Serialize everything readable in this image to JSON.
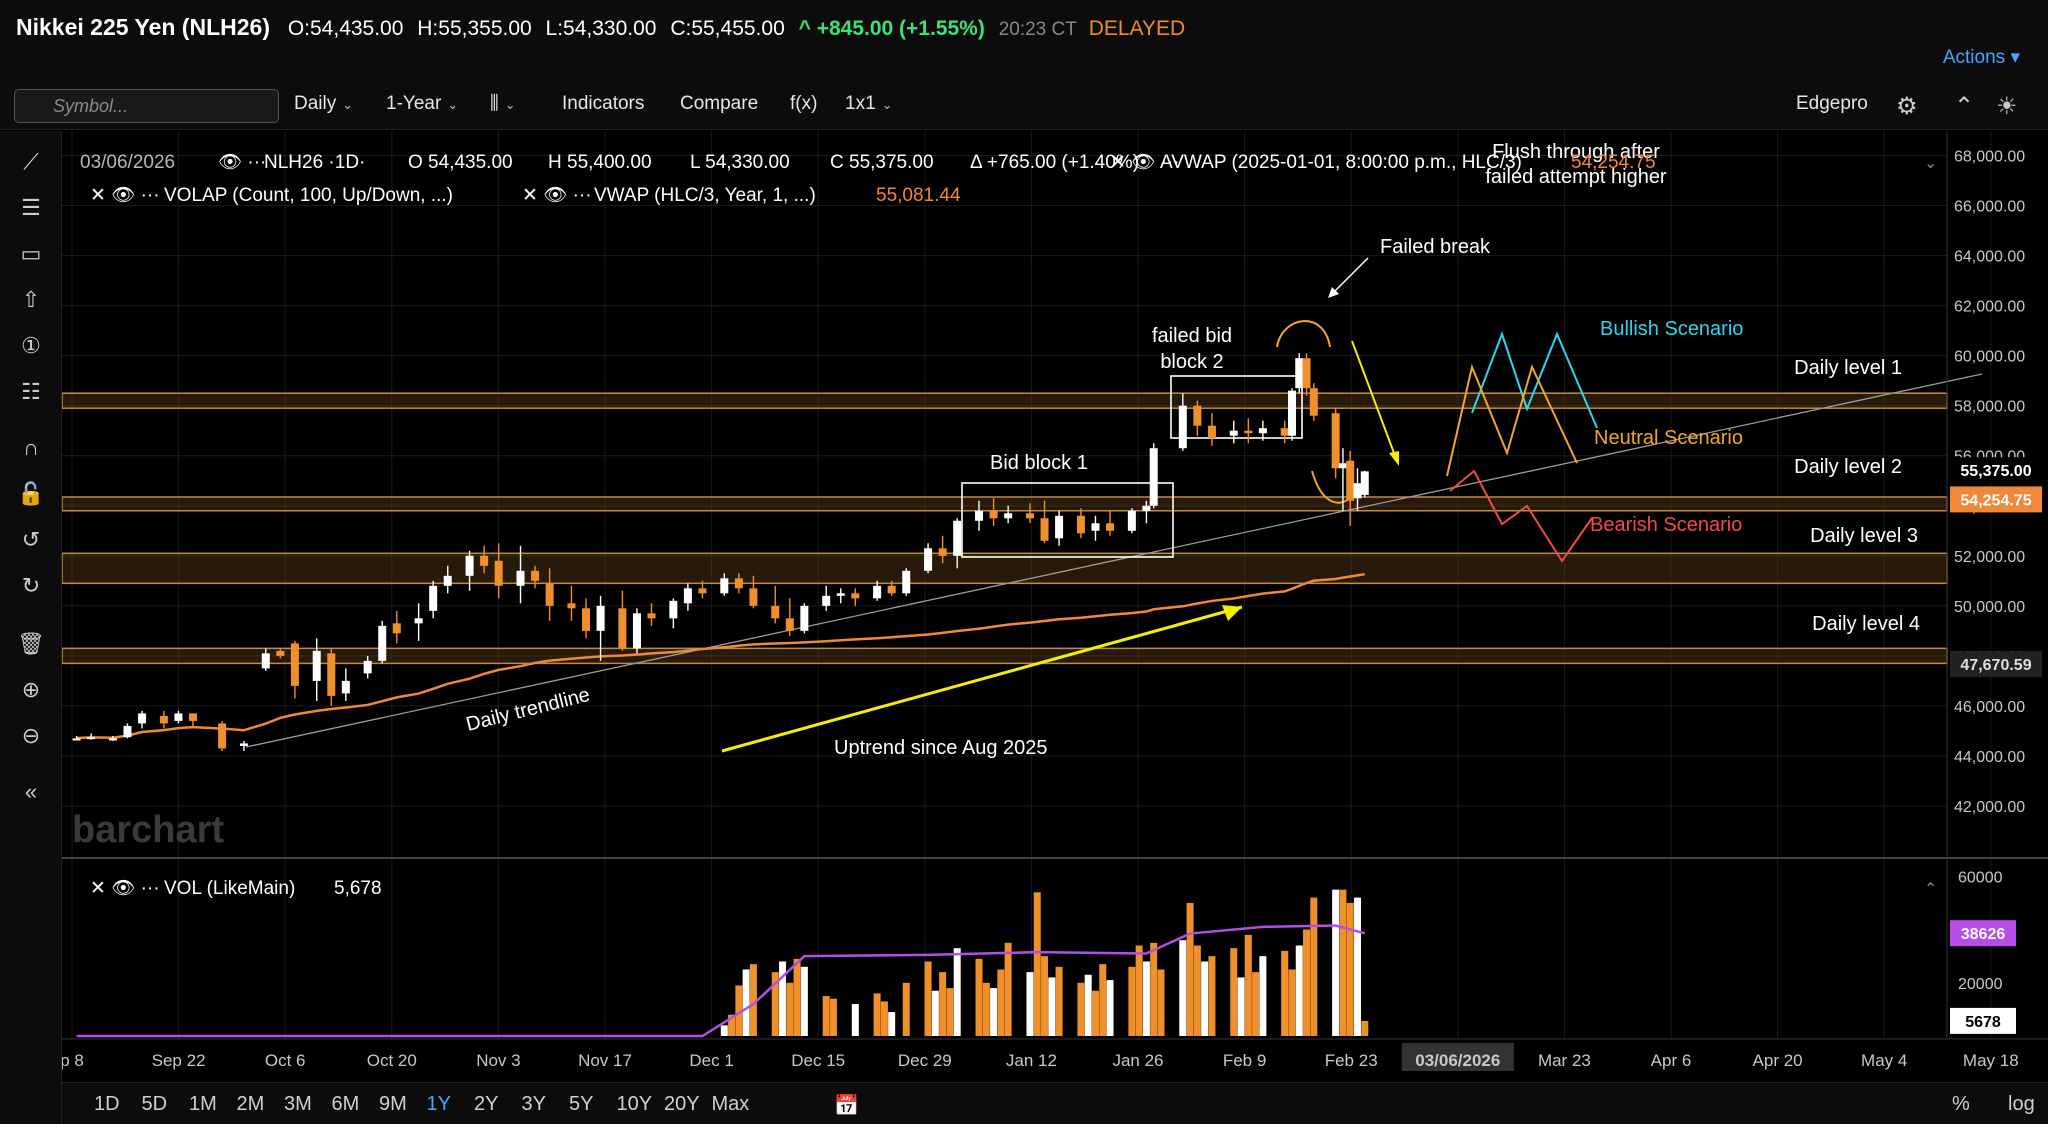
{
  "header": {
    "instrument": "Nikkei 225 Yen (NLH26)",
    "open": "O:54,435.00",
    "high": "H:55,355.00",
    "low": "L:54,330.00",
    "close": "C:55,455.00",
    "change": "^ +845.00 (+1.55%)",
    "time": "20:23 CT",
    "delayed": "DELAYED",
    "actions": "Actions"
  },
  "toolbar": {
    "symbol_placeholder": "Symbol...",
    "interval": "Daily",
    "range": "1-Year",
    "indicators": "Indicators",
    "compare": "Compare",
    "fx": "f(x)",
    "layout": "1x1",
    "account": "Edgepro"
  },
  "legend": {
    "date": "03/06/2026",
    "symbol": "NLH26 ·1D·",
    "o": "O 54,435.00",
    "h": "H 55,400.00",
    "l": "L 54,330.00",
    "c": "C 55,375.00",
    "d": "Δ +765.00 (+1.40%)",
    "avwap_label": "AVWAP (2025-01-01, 8:00:00 p.m., HLC/3)",
    "avwap_value": "54,254.75",
    "volap_label": "VOLAP (Count, 100, Up/Down, ...)",
    "vwap_label": "VWAP (HLC/3, Year, 1, ...)",
    "vwap_value": "55,081.44",
    "vol_label": "VOL (LikeMain)",
    "vol_value": "5,678"
  },
  "annotations": {
    "flush": [
      "Flush through after",
      "failed attempt higher"
    ],
    "failed_break": "Failed break",
    "failed_bid": [
      "failed bid",
      "block 2"
    ],
    "bid_block_1": "Bid block 1",
    "bullish": "Bullish Scenario",
    "neutral": "Neutral Scenario",
    "bearish": "Bearish Scenario",
    "level1": "Daily level 1",
    "level2": "Daily level 2",
    "level3": "Daily level 3",
    "level4": "Daily level 4",
    "trendline": "Daily trendline",
    "uptrend": "Uptrend since Aug 2025",
    "watermark": "barchart"
  },
  "price_axis": {
    "ticks": [
      "68,000.00",
      "66,000.00",
      "64,000.00",
      "62,000.00",
      "60,000.00",
      "58,000.00",
      "56,000.00",
      "54,000.00",
      "52,000.00",
      "50,000.00",
      "48,000.00",
      "46,000.00",
      "44,000.00",
      "42,000.00"
    ],
    "last_price": "55,375.00",
    "avwap_tag": "54,254.75",
    "level_tag": "47,670.59"
  },
  "volume_axis": {
    "ticks": [
      "60000",
      "20000"
    ],
    "avg_tag": "38626",
    "last_tag": "5678"
  },
  "time_axis": {
    "labels": [
      "p 8",
      "Sep 22",
      "Oct 6",
      "Oct 20",
      "Nov 3",
      "Nov 17",
      "Dec 1",
      "Dec 15",
      "Dec 29",
      "Jan 12",
      "Jan 26",
      "Feb 9",
      "Feb 23",
      "03/06/2026",
      "Mar 23",
      "Apr 6",
      "Apr 20",
      "May 4",
      "May 18"
    ]
  },
  "timeframes": [
    "1D",
    "5D",
    "1M",
    "2M",
    "3M",
    "6M",
    "9M",
    "1Y",
    "2Y",
    "3Y",
    "5Y",
    "10Y",
    "20Y",
    "Max"
  ],
  "active_timeframe": "1Y",
  "bottom_right": {
    "percent": "%",
    "log": "log"
  },
  "colors": {
    "up": "#ffffff",
    "down": "#f0902a",
    "vwap": "#f0883a",
    "volume_avg": "#b44ee6",
    "bullish": "#2ad7f0",
    "neutral": "#f2a62a",
    "bearish": "#f24a4a",
    "arrow": "#f4f000"
  },
  "chart_data": {
    "type": "candlestick",
    "ylim": [
      41000,
      68500
    ],
    "x_range": [
      "2025-09-08",
      "2026-05-25"
    ],
    "zones": [
      {
        "label": "Daily level 1",
        "low": 57900,
        "high": 58500
      },
      {
        "label": "Daily level 2",
        "low": 53800,
        "high": 54350
      },
      {
        "label": "Daily level 3",
        "low": 50900,
        "high": 52100
      },
      {
        "label": "Daily level 4",
        "low": 47700,
        "high": 48300
      }
    ],
    "candles": [
      [
        "2025-09-10",
        44700,
        44800,
        44650,
        44700
      ],
      [
        "2025-09-12",
        44700,
        44900,
        44650,
        44750
      ],
      [
        "2025-09-15",
        44700,
        44800,
        44600,
        44700
      ],
      [
        "2025-09-17",
        44750,
        45300,
        44700,
        45200
      ],
      [
        "2025-09-19",
        45300,
        45800,
        45100,
        45700
      ],
      [
        "2025-09-22",
        45600,
        45800,
        45100,
        45300
      ],
      [
        "2025-09-24",
        45400,
        45800,
        45300,
        45700
      ],
      [
        "2025-09-26",
        45700,
        45700,
        45200,
        45400
      ],
      [
        "2025-09-30",
        45300,
        45400,
        44200,
        44300
      ],
      [
        "2025-10-03",
        44400,
        44600,
        44200,
        44500
      ],
      [
        "2025-10-06",
        47500,
        48300,
        47400,
        48100
      ],
      [
        "2025-10-08",
        48200,
        48300,
        47900,
        48000
      ],
      [
        "2025-10-10",
        48500,
        48600,
        46300,
        46800
      ],
      [
        "2025-10-13",
        47000,
        48700,
        46200,
        48200
      ],
      [
        "2025-10-15",
        48100,
        48300,
        46000,
        46400
      ],
      [
        "2025-10-17",
        46500,
        47500,
        46200,
        47000
      ],
      [
        "2025-10-20",
        47300,
        48000,
        47100,
        47800
      ],
      [
        "2025-10-22",
        47800,
        49400,
        47700,
        49200
      ],
      [
        "2025-10-24",
        49300,
        49800,
        48500,
        48900
      ],
      [
        "2025-10-27",
        49300,
        50100,
        48600,
        49500
      ],
      [
        "2025-10-29",
        49800,
        51000,
        49500,
        50800
      ],
      [
        "2025-10-31",
        50800,
        51600,
        50500,
        51200
      ],
      [
        "2025-11-03",
        51200,
        52200,
        50600,
        52000
      ],
      [
        "2025-11-05",
        52000,
        52400,
        51300,
        51600
      ],
      [
        "2025-11-07",
        51800,
        52500,
        50300,
        50800
      ],
      [
        "2025-11-10",
        50800,
        52400,
        50100,
        51400
      ],
      [
        "2025-11-12",
        51400,
        51600,
        50700,
        51000
      ],
      [
        "2025-11-14",
        50900,
        51500,
        49400,
        50000
      ],
      [
        "2025-11-17",
        50100,
        50800,
        49400,
        49900
      ],
      [
        "2025-11-19",
        49900,
        50300,
        48700,
        49000
      ],
      [
        "2025-11-21",
        49000,
        50400,
        47800,
        50000
      ],
      [
        "2025-11-24",
        49900,
        50600,
        48200,
        48300
      ],
      [
        "2025-11-26",
        48300,
        49900,
        48100,
        49700
      ],
      [
        "2025-11-28",
        49700,
        50100,
        49200,
        49500
      ],
      [
        "2025-12-01",
        49500,
        50300,
        49100,
        50200
      ],
      [
        "2025-12-03",
        50100,
        50900,
        49800,
        50700
      ],
      [
        "2025-12-05",
        50700,
        51000,
        50300,
        50500
      ],
      [
        "2025-12-08",
        50500,
        51300,
        50400,
        51100
      ],
      [
        "2025-12-10",
        51100,
        51300,
        50500,
        50700
      ],
      [
        "2025-12-12",
        50700,
        51200,
        49900,
        50000
      ],
      [
        "2025-12-15",
        50000,
        50800,
        49300,
        49500
      ],
      [
        "2025-12-17",
        49500,
        50300,
        48800,
        49000
      ],
      [
        "2025-12-19",
        49000,
        50100,
        48900,
        50000
      ],
      [
        "2025-12-22",
        50000,
        50800,
        49800,
        50400
      ],
      [
        "2025-12-24",
        50400,
        50700,
        50100,
        50500
      ],
      [
        "2025-12-26",
        50500,
        50700,
        50000,
        50300
      ],
      [
        "2025-12-29",
        50300,
        51000,
        50200,
        50800
      ],
      [
        "2025-12-31",
        50800,
        51000,
        50400,
        50500
      ],
      [
        "2026-01-02",
        50500,
        51500,
        50400,
        51400
      ],
      [
        "2026-01-05",
        51400,
        52500,
        51300,
        52300
      ],
      [
        "2026-01-07",
        52300,
        52800,
        51700,
        52000
      ],
      [
        "2026-01-09",
        52000,
        53500,
        51500,
        53400
      ],
      [
        "2026-01-12",
        53400,
        54200,
        53000,
        53800
      ],
      [
        "2026-01-14",
        53800,
        54300,
        53200,
        53500
      ],
      [
        "2026-01-16",
        53500,
        54000,
        53300,
        53700
      ],
      [
        "2026-01-19",
        53700,
        54100,
        53300,
        53500
      ],
      [
        "2026-01-21",
        53500,
        54200,
        52500,
        52600
      ],
      [
        "2026-01-23",
        52700,
        53800,
        52400,
        53600
      ],
      [
        "2026-01-26",
        53600,
        53900,
        52700,
        52900
      ],
      [
        "2026-01-28",
        53000,
        53600,
        52600,
        53300
      ],
      [
        "2026-01-30",
        53300,
        53800,
        52800,
        53000
      ],
      [
        "2026-02-02",
        53000,
        53900,
        52900,
        53800
      ],
      [
        "2026-02-04",
        53800,
        54200,
        53300,
        54000
      ],
      [
        "2026-02-05",
        54000,
        56500,
        53900,
        56300
      ],
      [
        "2026-02-09",
        56300,
        58500,
        56200,
        58000
      ],
      [
        "2026-02-11",
        58000,
        58200,
        56800,
        57200
      ],
      [
        "2026-02-13",
        57200,
        57700,
        56400,
        56700
      ],
      [
        "2026-02-16",
        56800,
        57400,
        56500,
        57000
      ],
      [
        "2026-02-18",
        57000,
        57500,
        56500,
        56900
      ],
      [
        "2026-02-20",
        56900,
        57400,
        56600,
        57100
      ],
      [
        "2026-02-23",
        57100,
        57400,
        56500,
        56800
      ],
      [
        "2026-02-24",
        56800,
        58700,
        56600,
        58600
      ],
      [
        "2026-02-25",
        58700,
        60100,
        58500,
        59900
      ],
      [
        "2026-02-26",
        59900,
        60100,
        58400,
        58700
      ],
      [
        "2026-02-27",
        58700,
        58900,
        57400,
        57600
      ],
      [
        "2026-03-02",
        57700,
        57900,
        55100,
        55500
      ],
      [
        "2026-03-03",
        55500,
        56300,
        53800,
        55700
      ],
      [
        "2026-03-04",
        55800,
        56200,
        53200,
        54200
      ],
      [
        "2026-03-05",
        54300,
        55500,
        53800,
        54900
      ],
      [
        "2026-03-06",
        54435,
        55400,
        54330,
        55375
      ]
    ],
    "volume": [
      [
        "2025-12-08",
        4000
      ],
      [
        "2025-12-09",
        8000
      ],
      [
        "2025-12-10",
        19000
      ],
      [
        "2025-12-11",
        25000
      ],
      [
        "2025-12-12",
        27000
      ],
      [
        "2025-12-15",
        24000
      ],
      [
        "2025-12-16",
        28000
      ],
      [
        "2025-12-17",
        20000
      ],
      [
        "2025-12-18",
        29000
      ],
      [
        "2025-12-19",
        26000
      ],
      [
        "2025-12-22",
        15000
      ],
      [
        "2025-12-23",
        14000
      ],
      [
        "2025-12-26",
        12000
      ],
      [
        "2025-12-29",
        16000
      ],
      [
        "2025-12-30",
        13000
      ],
      [
        "2025-12-31",
        9000
      ],
      [
        "2026-01-02",
        20000
      ],
      [
        "2026-01-05",
        28000
      ],
      [
        "2026-01-06",
        17000
      ],
      [
        "2026-01-07",
        24000
      ],
      [
        "2026-01-08",
        18000
      ],
      [
        "2026-01-09",
        33000
      ],
      [
        "2026-01-12",
        29000
      ],
      [
        "2026-01-13",
        20000
      ],
      [
        "2026-01-14",
        18000
      ],
      [
        "2026-01-15",
        25000
      ],
      [
        "2026-01-16",
        35000
      ],
      [
        "2026-01-19",
        24000
      ],
      [
        "2026-01-20",
        54000
      ],
      [
        "2026-01-21",
        30000
      ],
      [
        "2026-01-22",
        22000
      ],
      [
        "2026-01-23",
        26000
      ],
      [
        "2026-01-26",
        20000
      ],
      [
        "2026-01-27",
        23000
      ],
      [
        "2026-01-28",
        17000
      ],
      [
        "2026-01-29",
        27000
      ],
      [
        "2026-01-30",
        21000
      ],
      [
        "2026-02-02",
        26000
      ],
      [
        "2026-02-03",
        34000
      ],
      [
        "2026-02-04",
        28000
      ],
      [
        "2026-02-05",
        35000
      ],
      [
        "2026-02-06",
        25000
      ],
      [
        "2026-02-09",
        36000
      ],
      [
        "2026-02-10",
        50000
      ],
      [
        "2026-02-11",
        34000
      ],
      [
        "2026-02-12",
        28000
      ],
      [
        "2026-02-13",
        30000
      ],
      [
        "2026-02-16",
        33000
      ],
      [
        "2026-02-17",
        22000
      ],
      [
        "2026-02-18",
        38000
      ],
      [
        "2026-02-19",
        24000
      ],
      [
        "2026-02-20",
        30000
      ],
      [
        "2026-02-23",
        32000
      ],
      [
        "2026-02-24",
        25000
      ],
      [
        "2026-02-25",
        34000
      ],
      [
        "2026-02-26",
        40000
      ],
      [
        "2026-02-27",
        52000
      ],
      [
        "2026-03-02",
        55000
      ],
      [
        "2026-03-03",
        55000
      ],
      [
        "2026-03-04",
        50000
      ],
      [
        "2026-03-05",
        52000
      ],
      [
        "2026-03-06",
        5678
      ]
    ]
  }
}
